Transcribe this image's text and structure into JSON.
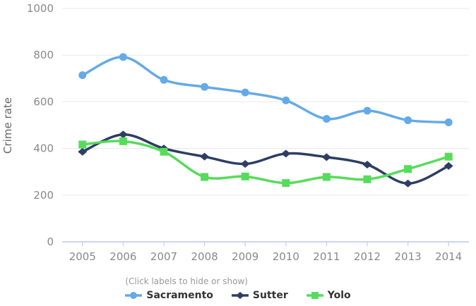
{
  "chart": {
    "hint": "(Click labels to hide or show)"
  },
  "chart_data": {
    "type": "line",
    "title": "",
    "xlabel": "",
    "ylabel": "Crime rate",
    "categories": [
      "2005",
      "2006",
      "2007",
      "2008",
      "2009",
      "2010",
      "2011",
      "2012",
      "2013",
      "2014"
    ],
    "ylim": [
      0,
      1000
    ],
    "yticks": [
      0,
      200,
      400,
      600,
      800,
      1000
    ],
    "grid": true,
    "legend_position": "bottom",
    "line_smoothing": true,
    "series": [
      {
        "name": "Sacramento",
        "marker": "circle",
        "color": "#64AAE8",
        "values": [
          714,
          792,
          694,
          664,
          640,
          606,
          527,
          562,
          521,
          512
        ]
      },
      {
        "name": "Sutter",
        "marker": "diamond",
        "color": "#2D3E63",
        "values": [
          386,
          460,
          400,
          365,
          334,
          378,
          363,
          331,
          250,
          325
        ]
      },
      {
        "name": "Yolo",
        "marker": "square",
        "color": "#55DC5A",
        "values": [
          417,
          431,
          386,
          278,
          280,
          252,
          278,
          268,
          312,
          365
        ]
      }
    ],
    "colors": {
      "grid": "#e8e8e8",
      "axis": "#c9d6f2",
      "tick_label": "#898989",
      "axis_title": "#666666",
      "hint_text": "#999999",
      "legend_label": "#333333"
    }
  }
}
